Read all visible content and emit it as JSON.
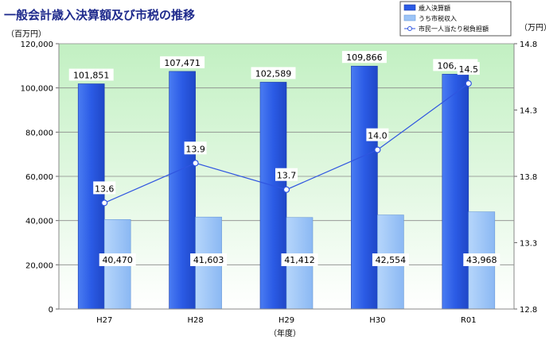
{
  "title": "一般会計歳入決算額及び市税の推移",
  "chart_data": {
    "type": "bar",
    "categories": [
      "H27",
      "H28",
      "H29",
      "H30",
      "R01"
    ],
    "xlabel": "（年度）",
    "y_left": {
      "unit": "（百万円）",
      "ylim": [
        0,
        120000
      ],
      "ticks": [
        "0",
        "20,000",
        "40,000",
        "60,000",
        "80,000",
        "100,000",
        "120,000"
      ]
    },
    "y_right": {
      "unit": "（万円）",
      "ylim": [
        12.8,
        14.8
      ],
      "ticks": [
        "12.8",
        "13.3",
        "13.8",
        "14.3",
        "14.8"
      ]
    },
    "series": [
      {
        "name": "歳入決算額",
        "type": "bar",
        "color": "#2b5be5",
        "values": [
          101851,
          107471,
          102589,
          109866,
          106212
        ],
        "labels": [
          "101,851",
          "107,471",
          "102,589",
          "109,866",
          "106,212"
        ]
      },
      {
        "name": "うち市税収入",
        "type": "bar",
        "color": "#9cc4f7",
        "values": [
          40470,
          41603,
          41412,
          42554,
          43968
        ],
        "labels": [
          "40,470",
          "41,603",
          "41,412",
          "42,554",
          "43,968"
        ]
      },
      {
        "name": "市民一人当たり税負担額",
        "type": "line",
        "axis": "right",
        "color": "#2f55e0",
        "values": [
          13.6,
          13.9,
          13.7,
          14.0,
          14.5
        ],
        "labels": [
          "13.6",
          "13.9",
          "13.7",
          "14.0",
          "14.5"
        ]
      }
    ],
    "legend": "top-right",
    "grid": true
  }
}
